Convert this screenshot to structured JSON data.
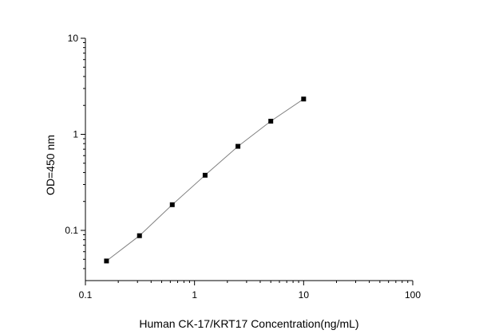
{
  "chart_data": {
    "type": "scatter",
    "title": "",
    "xlabel": "Human CK-17/KRT17 Concentration(ng/mL)",
    "ylabel": "OD=450 nm",
    "x_scale": "log",
    "y_scale": "log",
    "xlim": [
      0.1,
      100
    ],
    "ylim": [
      0.03,
      10
    ],
    "x_ticks": [
      {
        "value": 0.1,
        "label": "0.1"
      },
      {
        "value": 1,
        "label": "1"
      },
      {
        "value": 10,
        "label": "10"
      },
      {
        "value": 100,
        "label": "100"
      }
    ],
    "y_ticks": [
      {
        "value": 0.1,
        "label": "0.1"
      },
      {
        "value": 1,
        "label": "1"
      },
      {
        "value": 10,
        "label": "10"
      }
    ],
    "grid": false,
    "legend": "none",
    "marker_color": "#000000",
    "line_color": "#808080",
    "series": [
      {
        "x": [
          0.156,
          0.313,
          0.625,
          1.25,
          2.5,
          5,
          10
        ],
        "y": [
          0.048,
          0.088,
          0.185,
          0.375,
          0.75,
          1.37,
          2.33
        ]
      }
    ]
  }
}
